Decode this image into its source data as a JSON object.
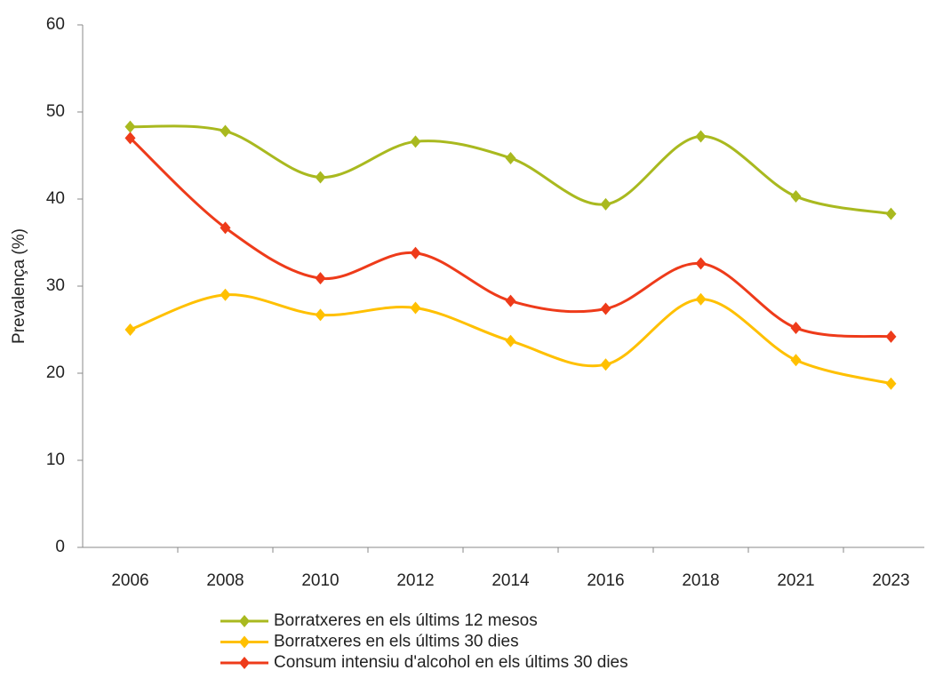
{
  "chart_data": {
    "type": "line",
    "y_label": "Prevalença (%)",
    "categories": [
      "2006",
      "2008",
      "2010",
      "2012",
      "2014",
      "2016",
      "2018",
      "2021",
      "2023"
    ],
    "series": [
      {
        "name": "Borratxeres en els últims 12 mesos",
        "color": "#a9b91f",
        "values": [
          48.3,
          47.8,
          42.5,
          46.6,
          44.7,
          39.4,
          47.2,
          40.3,
          38.3
        ]
      },
      {
        "name": "Borratxeres en els últims 30 dies",
        "color": "#ffc000",
        "values": [
          25.0,
          29.0,
          26.7,
          27.5,
          23.7,
          21.0,
          28.5,
          21.5,
          18.8
        ]
      },
      {
        "name": "Consum intensiu d'alcohol en els últims 30 dies",
        "color": "#ee3b1a",
        "values": [
          47.0,
          36.7,
          30.9,
          33.8,
          28.3,
          27.4,
          32.6,
          25.2,
          24.2
        ]
      }
    ],
    "ylim": [
      0,
      60
    ],
    "yticks": [
      0,
      10,
      20,
      30,
      40,
      50,
      60
    ],
    "grid": false,
    "smooth": true
  }
}
